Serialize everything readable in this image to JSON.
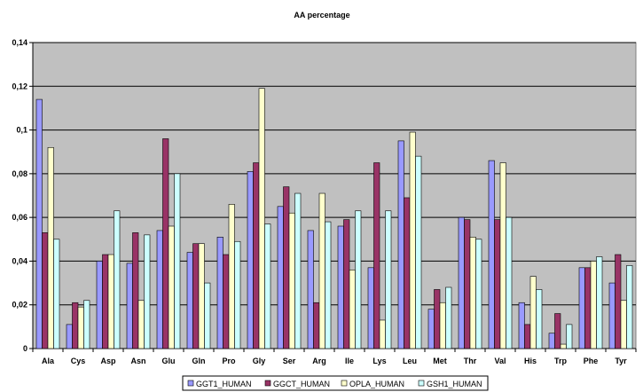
{
  "chart_data": {
    "type": "bar",
    "title": "AA percentage",
    "xlabel": "",
    "ylabel": "",
    "ylim": [
      0,
      0.14
    ],
    "yticks": [
      "0",
      "0,02",
      "0,04",
      "0,06",
      "0,08",
      "0,1",
      "0,12",
      "0,14"
    ],
    "ytick_values": [
      0,
      0.02,
      0.04,
      0.06,
      0.08,
      0.1,
      0.12,
      0.14
    ],
    "grid": true,
    "legend_position": "bottom",
    "plot_background": "#c0c0c0",
    "categories": [
      "Ala",
      "Cys",
      "Asp",
      "Asn",
      "Glu",
      "Gln",
      "Pro",
      "Gly",
      "Ser",
      "Arg",
      "Ile",
      "Lys",
      "Leu",
      "Met",
      "Thr",
      "Val",
      "His",
      "Trp",
      "Phe",
      "Tyr"
    ],
    "series": [
      {
        "name": "GGT1_HUMAN",
        "color": "#9999ff",
        "values": [
          0.114,
          0.011,
          0.04,
          0.039,
          0.054,
          0.044,
          0.051,
          0.081,
          0.065,
          0.054,
          0.056,
          0.037,
          0.095,
          0.018,
          0.06,
          0.086,
          0.021,
          0.007,
          0.037,
          0.03
        ]
      },
      {
        "name": "GGCT_HUMAN",
        "color": "#993366",
        "values": [
          0.053,
          0.021,
          0.043,
          0.053,
          0.096,
          0.048,
          0.043,
          0.085,
          0.074,
          0.021,
          0.059,
          0.085,
          0.069,
          0.027,
          0.059,
          0.059,
          0.011,
          0.016,
          0.037,
          0.043
        ]
      },
      {
        "name": "OPLA_HUMAN",
        "color": "#ffffcc",
        "values": [
          0.092,
          0.019,
          0.043,
          0.022,
          0.056,
          0.048,
          0.066,
          0.119,
          0.062,
          0.071,
          0.036,
          0.013,
          0.099,
          0.021,
          0.051,
          0.085,
          0.033,
          0.002,
          0.04,
          0.022
        ]
      },
      {
        "name": "GSH1_HUMAN",
        "color": "#ccffff",
        "values": [
          0.05,
          0.022,
          0.063,
          0.052,
          0.08,
          0.03,
          0.049,
          0.057,
          0.071,
          0.058,
          0.063,
          0.063,
          0.088,
          0.028,
          0.05,
          0.06,
          0.027,
          0.011,
          0.042,
          0.038
        ]
      }
    ]
  }
}
